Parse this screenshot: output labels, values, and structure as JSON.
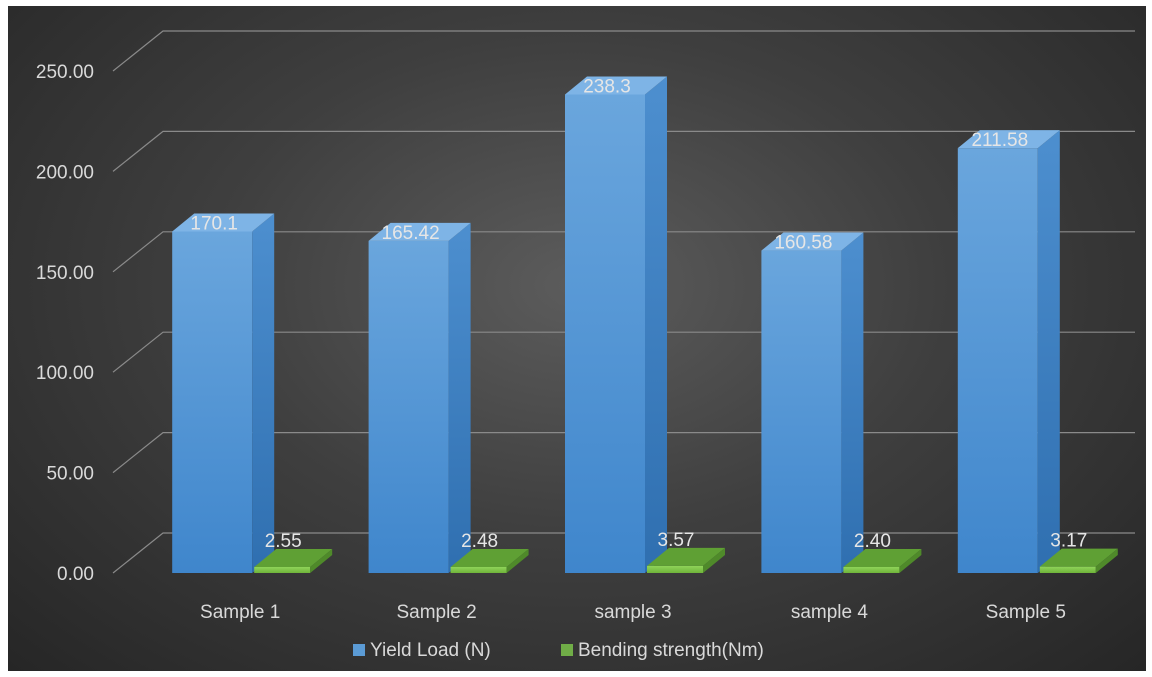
{
  "chart_data": {
    "type": "bar",
    "title": "",
    "xlabel": "",
    "ylabel": "",
    "categories": [
      "Sample 1",
      "Sample 2",
      "sample 3",
      "sample 4",
      "Sample 5"
    ],
    "series": [
      {
        "name": "Yield Load (N)",
        "values": [
          170.1,
          165.42,
          238.3,
          160.58,
          211.58
        ],
        "labels": [
          "170.1",
          "165.42",
          "238.3",
          "160.58",
          "211.58"
        ],
        "color": "#5b9bd5"
      },
      {
        "name": "Bending strength(Nm)",
        "values": [
          2.55,
          2.48,
          3.57,
          2.4,
          3.17
        ],
        "labels": [
          "2.55",
          "2.48",
          "3.57",
          "2.40",
          "3.17"
        ],
        "color": "#70ad47"
      }
    ],
    "yticks": [
      "0.00",
      "50.00",
      "100.00",
      "150.00",
      "200.00",
      "250.00"
    ],
    "ylim": [
      0,
      250
    ],
    "grid": true,
    "legend_position": "bottom",
    "style": "3d-column"
  }
}
